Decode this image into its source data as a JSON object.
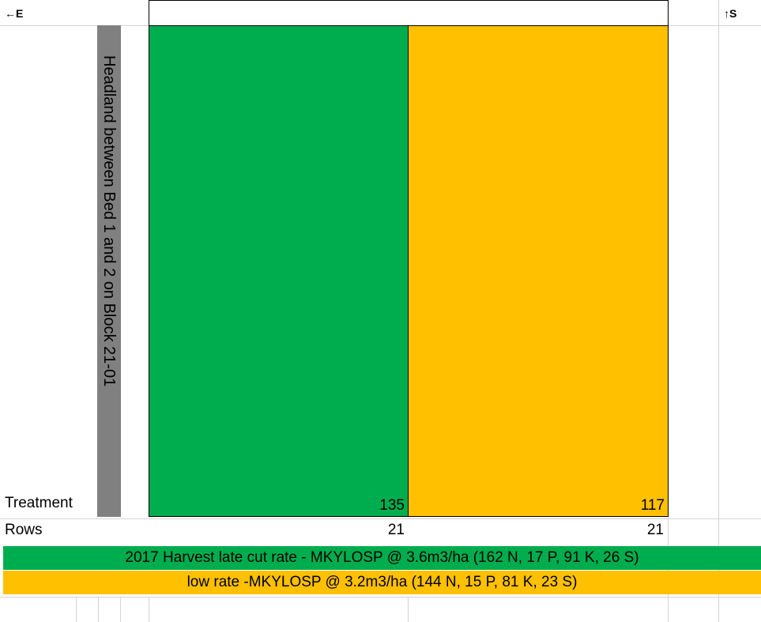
{
  "compass": {
    "left": "←E",
    "right": "↑S"
  },
  "headland": {
    "label": "Headland between Bed 1 and 2 on Block 21-01"
  },
  "labels": {
    "treatment": "Treatment",
    "rows": "Rows"
  },
  "plots": [
    {
      "color": "#00ad4e",
      "treatment": "135",
      "rows": "21"
    },
    {
      "color": "#ffc000",
      "treatment": "117",
      "rows": "21"
    }
  ],
  "legend": [
    {
      "color": "#00ad4e",
      "text": "2017 Harvest late cut rate - MKYLOSP @ 3.6m3/ha (162 N, 17 P, 91 K, 26 S)"
    },
    {
      "color": "#ffc000",
      "text": "low rate -MKYLOSP @ 3.2m3/ha (144 N, 15 P, 81 K, 23 S)"
    }
  ],
  "colors": {
    "headland": "#808080",
    "gridline": "#d4d4d4"
  }
}
